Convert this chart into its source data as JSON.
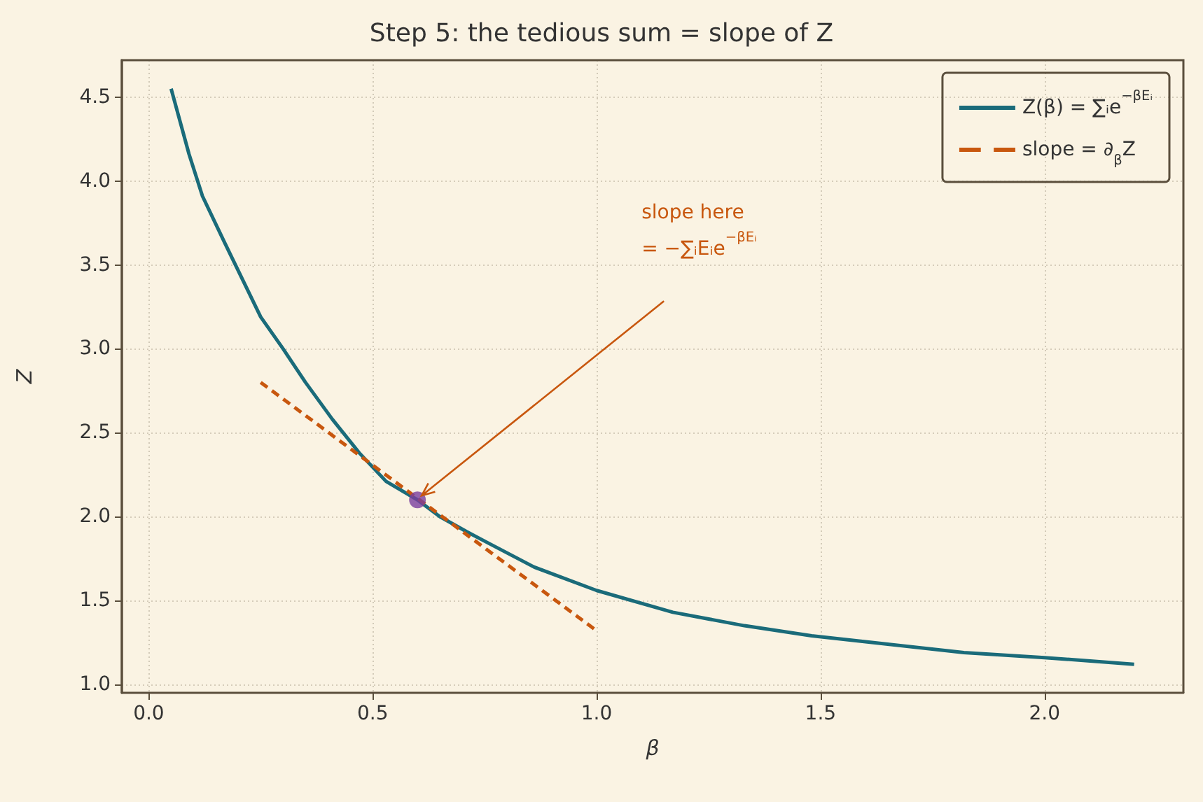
{
  "chart_data": {
    "type": "line",
    "title": "Step 5: the tedious sum = slope of Z",
    "xlabel": "β",
    "ylabel": "Z",
    "xlim": [
      -0.06,
      2.31
    ],
    "ylim": [
      0.95,
      4.72
    ],
    "xticks": [
      {
        "value": 0,
        "label": "0.0"
      },
      0.5,
      {
        "value": 1,
        "label": "1.0"
      },
      1.5,
      {
        "value": 2,
        "label": "2.0"
      }
    ],
    "yticks": [
      {
        "value": 1,
        "label": "1.0"
      },
      1.5,
      {
        "value": 2,
        "label": "2.0"
      },
      2.5,
      {
        "value": 3,
        "label": "3.0"
      },
      3.5,
      {
        "value": 4,
        "label": "4.0"
      },
      4.5
    ],
    "grid": true,
    "legend": "top right",
    "series": [
      {
        "name": "Z(β) = ∑ᵢe$^{−βEᵢ}$",
        "color": "#1a6b7a",
        "line_style": "solid",
        "marker": "none",
        "x": [
          0.05,
          0.09,
          0.12,
          0.17,
          0.21,
          0.25,
          0.3,
          0.35,
          0.41,
          0.47,
          0.53,
          0.6,
          0.65,
          0.71,
          0.76,
          0.86,
          1.0,
          1.17,
          1.33,
          1.48,
          1.65,
          1.82,
          2.0,
          2.2
        ],
        "values": [
          4.55,
          4.16,
          3.91,
          3.63,
          3.41,
          3.19,
          3.0,
          2.8,
          2.58,
          2.38,
          2.21,
          2.1,
          2.0,
          1.91,
          1.84,
          1.7,
          1.56,
          1.43,
          1.35,
          1.29,
          1.24,
          1.19,
          1.16,
          1.12
        ]
      },
      {
        "name": "slope = ∂$_{β}$Z",
        "color": "#c8570e",
        "line_style": "dashed",
        "marker": "none",
        "x": [
          0.25,
          1.0
        ],
        "values": [
          2.8,
          1.32
        ]
      },
      {
        "type": "scatter",
        "color": "#7b3f9e",
        "marker": "circle",
        "x": [
          0.6
        ],
        "values": [
          2.1
        ]
      }
    ],
    "annotations": [
      "slope here\n= −∑ᵢEᵢe$^{−βEᵢ}$"
    ]
  }
}
